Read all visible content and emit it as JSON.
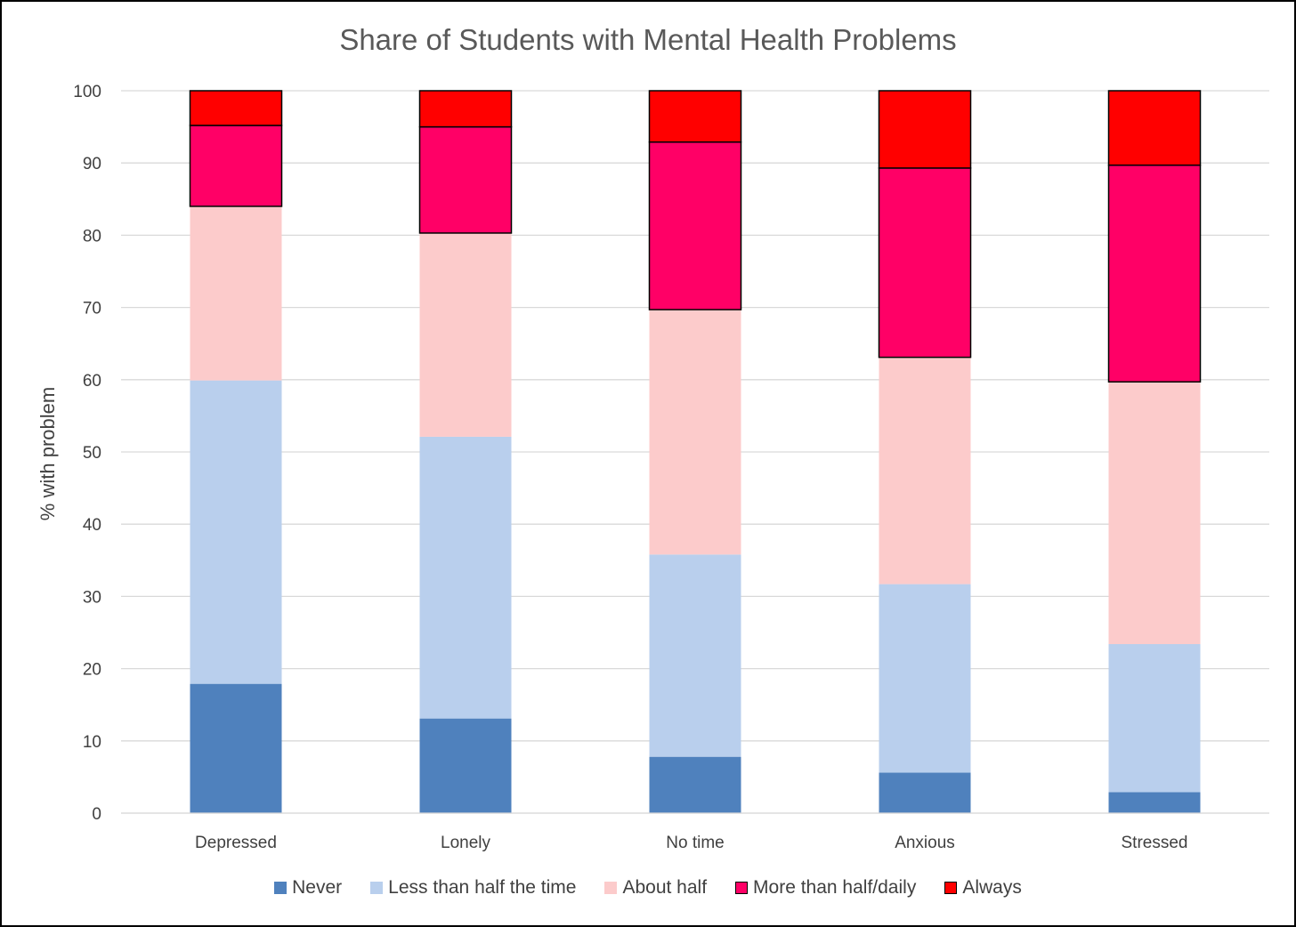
{
  "chart_data": {
    "type": "bar",
    "stacked": true,
    "title": "Share of Students with Mental Health Problems",
    "xlabel": "",
    "ylabel": "% with problem",
    "ylim": [
      0,
      100
    ],
    "yticks": [
      0,
      10,
      20,
      30,
      40,
      50,
      60,
      70,
      80,
      90,
      100
    ],
    "grid": true,
    "legend_position": "bottom",
    "categories": [
      "Depressed",
      "Lonely",
      "No time",
      "Anxious",
      "Stressed"
    ],
    "series": [
      {
        "name": "Never",
        "color": "#4f81bd",
        "outlined": false,
        "values": [
          17.9,
          13.1,
          7.8,
          5.6,
          2.9
        ]
      },
      {
        "name": "Less than half the time",
        "color": "#b9cfed",
        "outlined": false,
        "values": [
          42.0,
          39.0,
          28.0,
          26.1,
          20.5
        ]
      },
      {
        "name": "About half",
        "color": "#fccbcb",
        "outlined": false,
        "values": [
          24.1,
          28.2,
          33.9,
          31.4,
          36.3
        ]
      },
      {
        "name": "More than half/daily",
        "color": "#ff0066",
        "outlined": true,
        "values": [
          11.2,
          14.7,
          23.2,
          26.2,
          30.0
        ]
      },
      {
        "name": "Always",
        "color": "#ff0000",
        "outlined": true,
        "values": [
          4.8,
          5.0,
          7.1,
          10.7,
          10.3
        ]
      }
    ]
  }
}
